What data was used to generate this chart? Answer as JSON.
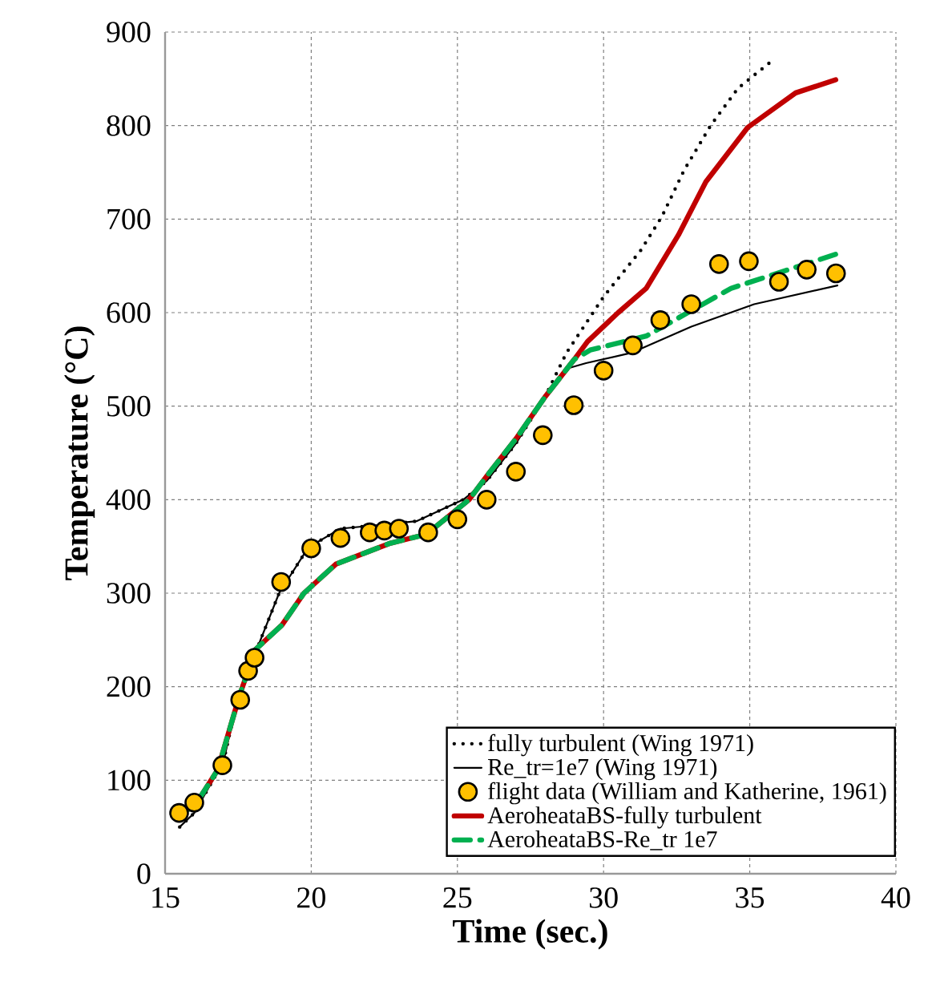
{
  "chart_data": {
    "type": "line",
    "xlabel": "Time (sec.)",
    "ylabel": "Temperature (°C)",
    "xlim": [
      15,
      40
    ],
    "ylim": [
      0,
      900
    ],
    "xticks": [
      15,
      20,
      25,
      30,
      35,
      40
    ],
    "yticks": [
      0,
      100,
      200,
      300,
      400,
      500,
      600,
      700,
      800,
      900
    ],
    "grid": true,
    "legend": "bottom right",
    "series": [
      {
        "name": "fully turbulent (Wing 1971)",
        "line_style": "dotted",
        "marker": "none",
        "color": "#000000",
        "x": [
          15.5,
          16,
          17,
          17.5,
          18.1,
          18.9,
          19.9,
          21,
          22,
          23,
          23.6,
          25.2,
          26,
          27,
          28,
          28.73,
          30,
          31.28,
          32,
          32.75,
          33.66,
          34.6,
          35.79
        ],
        "values": [
          50,
          65,
          120,
          190,
          237,
          300,
          349,
          369,
          372,
          375,
          377,
          400,
          420,
          460,
          510,
          557,
          617,
          667,
          703,
          752,
          800,
          840,
          870
        ]
      },
      {
        "name": "Re_tr=1e7 (Wing 1971)",
        "line_style": "solid",
        "marker": "none",
        "color": "#000000",
        "x": [
          15.5,
          16,
          17,
          17.5,
          18.1,
          18.9,
          19.9,
          21,
          22,
          23,
          23.6,
          25.2,
          26,
          27,
          28,
          28.73,
          29.4,
          30.95,
          33,
          35.15,
          38
        ],
        "values": [
          50,
          65,
          120,
          190,
          237,
          300,
          349,
          369,
          372,
          375,
          377,
          400,
          420,
          460,
          510,
          540,
          546,
          557,
          585,
          609,
          629
        ]
      },
      {
        "name": "flight data (William and Katherine, 1961)",
        "type": "scatter",
        "marker": "circle",
        "color": "#ffc000",
        "x": [
          15.48,
          16,
          16.96,
          17.57,
          17.84,
          18.06,
          18.97,
          20,
          21,
          22,
          22.5,
          23,
          24,
          25,
          26,
          27,
          27.92,
          28.98,
          30,
          31,
          31.94,
          33,
          33.95,
          34.97,
          36,
          36.95,
          37.95
        ],
        "values": [
          65,
          76,
          116,
          186,
          217,
          231,
          312,
          348,
          359,
          365,
          367,
          369,
          365,
          379,
          400,
          430,
          469,
          501,
          538,
          565,
          592,
          609,
          652,
          655,
          633,
          646,
          642
        ]
      },
      {
        "name": "AeroheataBS-fully turbulent",
        "line_style": "solid",
        "marker": "none",
        "color": "#c00000",
        "x": [
          15.48,
          16,
          16.8,
          17.56,
          18.1,
          19,
          19.75,
          20.84,
          22.66,
          23.94,
          25.4,
          26,
          27,
          28,
          29,
          29.45,
          30.5,
          31.46,
          32.56,
          33.5,
          34.93,
          36.57,
          37.94
        ],
        "values": [
          64,
          72,
          111,
          192,
          240,
          266,
          300,
          331,
          353,
          363,
          400,
          425,
          465,
          510,
          550,
          569,
          600,
          626,
          683,
          740,
          798,
          835,
          849
        ]
      },
      {
        "name": "AeroheataBS-Re_tr 1e7",
        "line_style": "dashed",
        "marker": "none",
        "color": "#00b050",
        "x": [
          15.48,
          16,
          16.8,
          17.56,
          18.1,
          19,
          19.75,
          20.84,
          22.66,
          23.94,
          25.4,
          26,
          27,
          28,
          29,
          29.54,
          31.46,
          34.36,
          38
        ],
        "values": [
          64,
          72,
          111,
          192,
          240,
          266,
          300,
          331,
          353,
          363,
          400,
          425,
          465,
          510,
          550,
          560,
          575,
          626,
          663
        ]
      }
    ]
  }
}
